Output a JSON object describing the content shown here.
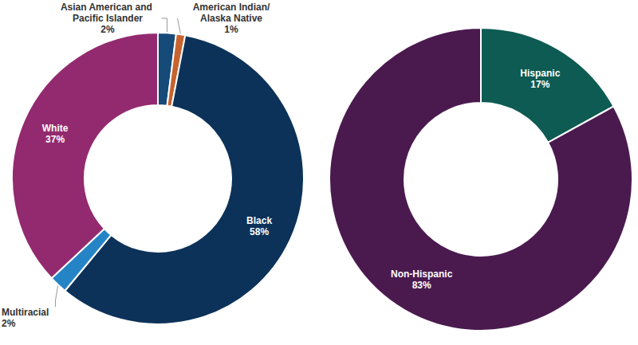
{
  "chart_data": [
    {
      "type": "donut",
      "categories": [
        "Asian American and Pacific Islander",
        "American Indian/Alaska Native",
        "Black",
        "Multiracial",
        "White"
      ],
      "values": [
        2,
        1,
        58,
        2,
        37
      ],
      "value_labels": [
        "2%",
        "1%",
        "58%",
        "2%",
        "37%"
      ],
      "colors": [
        "#164a78",
        "#c8622e",
        "#0c3259",
        "#2584c6",
        "#932a6f"
      ],
      "data_labels": true
    },
    {
      "type": "donut",
      "categories": [
        "Hispanic",
        "Non-Hispanic"
      ],
      "values": [
        17,
        83
      ],
      "value_labels": [
        "17%",
        "83%"
      ],
      "colors": [
        "#0d5b52",
        "#4a1a4f"
      ],
      "data_labels": true
    }
  ]
}
